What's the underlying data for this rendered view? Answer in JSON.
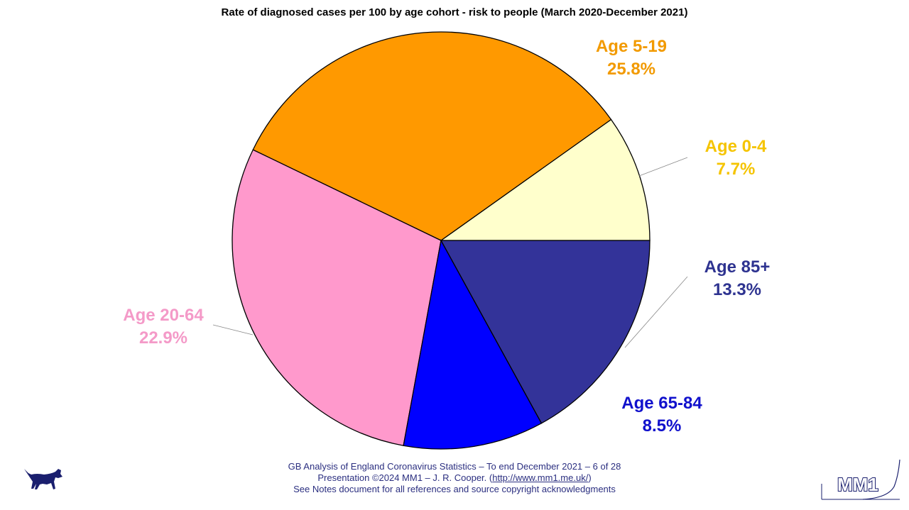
{
  "title": "Rate of diagnosed cases per 100 by age cohort - risk to people (March 2020-December 2021)",
  "chart_data": {
    "type": "pie",
    "title": "Rate of diagnosed cases per 100 by age cohort - risk to people (March 2020-December 2021)",
    "slices": [
      {
        "label": "Age 0-4",
        "value": 7.7,
        "pct_label": "7.7%",
        "color": "#FFFFCC",
        "text_color": "#F5C400"
      },
      {
        "label": "Age 5-19",
        "value": 25.8,
        "pct_label": "25.8%",
        "color": "#FF9900",
        "text_color": "#F29A00"
      },
      {
        "label": "Age 20-64",
        "value": 22.9,
        "pct_label": "22.9%",
        "color": "#FF99CC",
        "text_color": "#F49AC8"
      },
      {
        "label": "Age 65-84",
        "value": 8.5,
        "pct_label": "8.5%",
        "color": "#0000FF",
        "text_color": "#1010CC"
      },
      {
        "label": "Age 85+",
        "value": 13.3,
        "pct_label": "13.3%",
        "color": "#333399",
        "text_color": "#2E3390"
      }
    ],
    "legend": "none"
  },
  "footer": {
    "line1": "GB Analysis of England Coronavirus Statistics – To end December 2021 – 6 of 28",
    "line2_prefix": "Presentation ©2024 MM1 – J. R. Cooper. (",
    "link": "http://www.mm1.me.uk/",
    "line2_suffix": ")",
    "line3": "See Notes document for all references and source copyright acknowledgments"
  },
  "logo_text": "MM1",
  "colors": {
    "footer_text": "#2B2F80",
    "logo": "#1A1F6E"
  }
}
